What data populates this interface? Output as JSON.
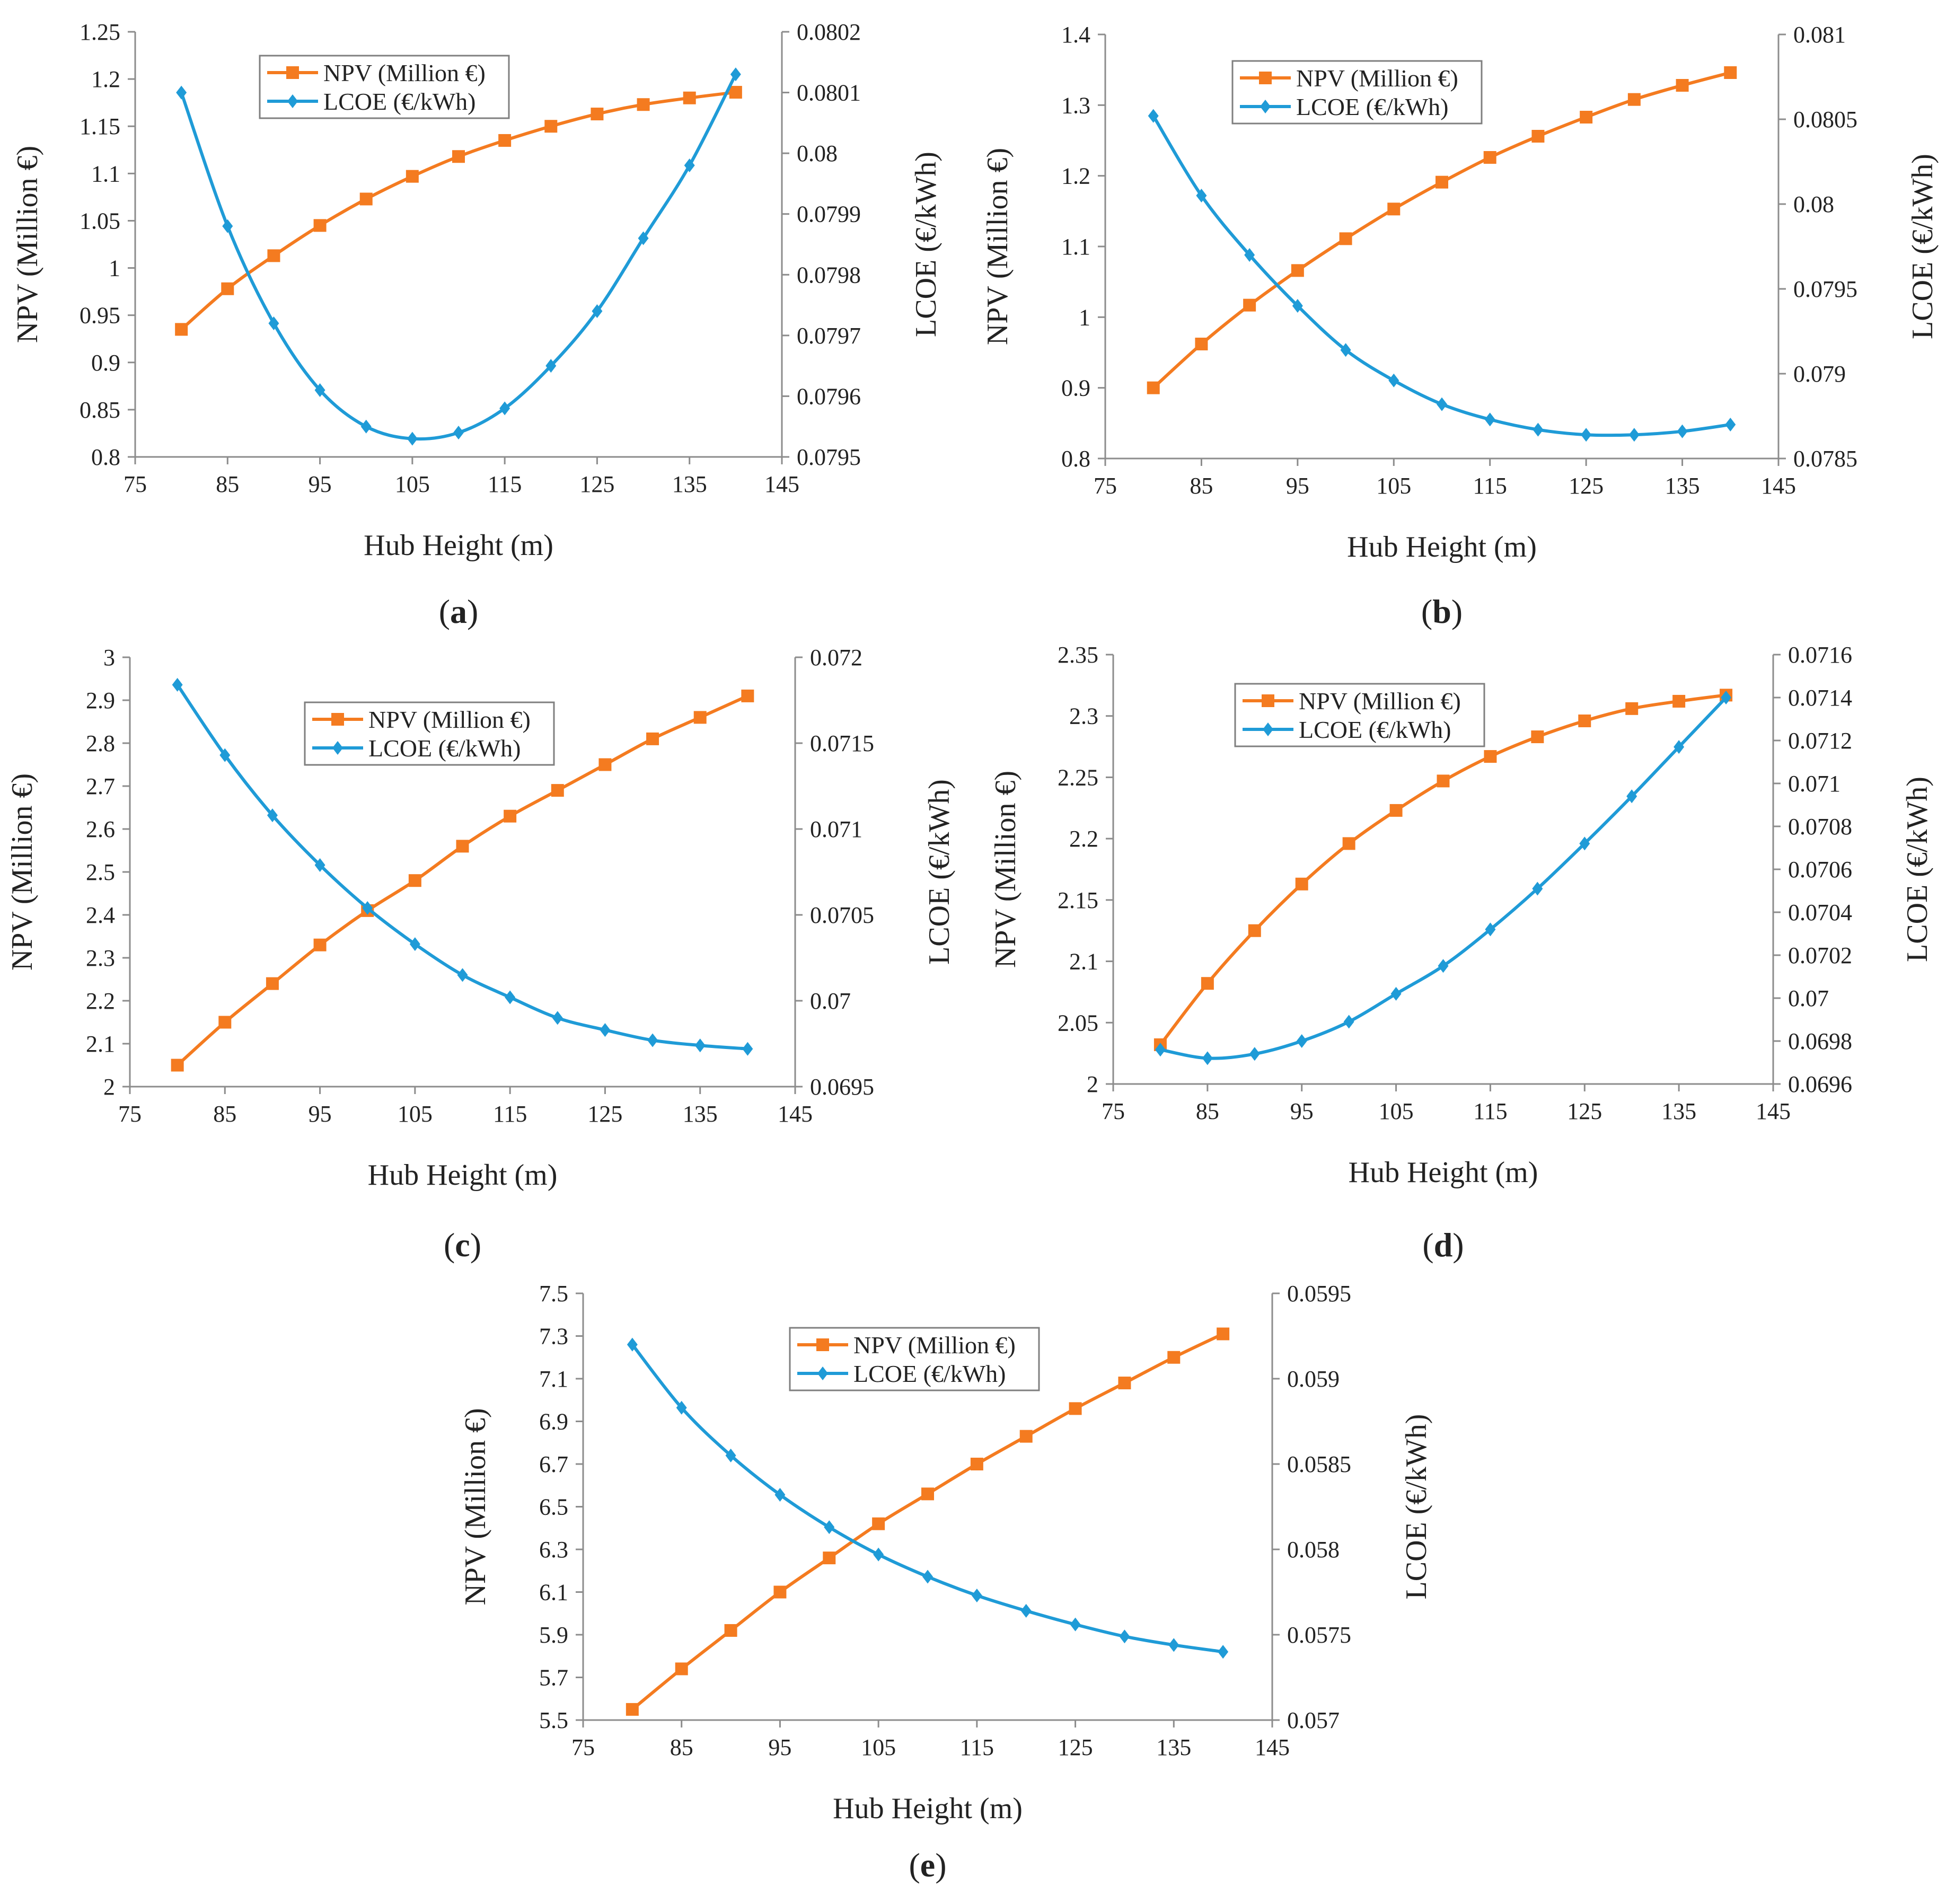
{
  "colors": {
    "npv": "#F47B20",
    "lcoe": "#1F9BD7",
    "axis": "#8c8c8c",
    "legend_border": "#7f7f7f"
  },
  "marker_shapes": {
    "npv": "square",
    "lcoe": "diamond"
  },
  "chart_data": [
    {
      "id": "a",
      "type": "line",
      "caption_letter": "a",
      "xlabel": "Hub Height (m)",
      "ylabel_left": "NPV (Million €)",
      "ylabel_right": "LCOE (€/kWh)",
      "xlim": [
        75,
        145
      ],
      "x_ticks": [
        "75",
        "85",
        "95",
        "105",
        "115",
        "125",
        "135",
        "145"
      ],
      "ylim_left": [
        0.8,
        1.25
      ],
      "y_ticks_left": [
        "0.8",
        "0.85",
        "0.9",
        "0.95",
        "1",
        "1.05",
        "1.1",
        "1.15",
        "1.2",
        "1.25"
      ],
      "ylim_right": [
        0.0795,
        0.0802
      ],
      "y_ticks_right": [
        "0.0795",
        "0.0796",
        "0.0797",
        "0.0798",
        "0.0799",
        "0.08",
        "0.0801",
        "0.0802"
      ],
      "legend_position": "top-center",
      "x": [
        80,
        85,
        90,
        95,
        100,
        105,
        110,
        115,
        120,
        125,
        130,
        135,
        140
      ],
      "series": [
        {
          "name": "NPV (Million €)",
          "axis": "left",
          "marker": "square",
          "values": [
            0.935,
            0.978,
            1.013,
            1.045,
            1.073,
            1.097,
            1.118,
            1.135,
            1.15,
            1.163,
            1.173,
            1.18,
            1.186
          ]
        },
        {
          "name": "LCOE (€/kWh)",
          "axis": "right",
          "marker": "diamond",
          "values": [
            0.0801,
            0.07988,
            0.07972,
            0.07961,
            0.07955,
            0.07953,
            0.07954,
            0.07958,
            0.07965,
            0.07974,
            0.07986,
            0.07998,
            0.08013
          ]
        }
      ]
    },
    {
      "id": "b",
      "type": "line",
      "caption_letter": "b",
      "xlabel": "Hub Height (m)",
      "ylabel_left": "NPV (Million €)",
      "ylabel_right": "LCOE (€/kWh)",
      "xlim": [
        75,
        145
      ],
      "x_ticks": [
        "75",
        "85",
        "95",
        "105",
        "115",
        "125",
        "135",
        "145"
      ],
      "ylim_left": [
        0.8,
        1.4
      ],
      "y_ticks_left": [
        "0.8",
        "0.9",
        "1",
        "1.1",
        "1.2",
        "1.3",
        "1.4"
      ],
      "ylim_right": [
        0.0785,
        0.081
      ],
      "y_ticks_right": [
        "0.0785",
        "0.079",
        "0.0795",
        "0.08",
        "0.0805",
        "0.081"
      ],
      "legend_position": "top-center",
      "x": [
        80,
        85,
        90,
        95,
        100,
        105,
        110,
        115,
        120,
        125,
        130,
        135,
        140
      ],
      "series": [
        {
          "name": "NPV (Million €)",
          "axis": "left",
          "marker": "square",
          "values": [
            0.9,
            0.962,
            1.017,
            1.066,
            1.111,
            1.153,
            1.191,
            1.226,
            1.256,
            1.283,
            1.308,
            1.328,
            1.346
          ]
        },
        {
          "name": "LCOE (€/kWh)",
          "axis": "right",
          "marker": "diamond",
          "values": [
            0.08052,
            0.08005,
            0.0797,
            0.0794,
            0.07914,
            0.07896,
            0.07882,
            0.07873,
            0.07867,
            0.07864,
            0.07864,
            0.07866,
            0.0787
          ]
        }
      ]
    },
    {
      "id": "c",
      "type": "line",
      "caption_letter": "c",
      "xlabel": "Hub Height (m)",
      "ylabel_left": "NPV (Million €)",
      "ylabel_right": "LCOE (€/kWh)",
      "xlim": [
        75,
        145
      ],
      "x_ticks": [
        "75",
        "85",
        "95",
        "105",
        "115",
        "125",
        "135",
        "145"
      ],
      "ylim_left": [
        2.0,
        3.0
      ],
      "y_ticks_left": [
        "2",
        "2.1",
        "2.2",
        "2.3",
        "2.4",
        "2.5",
        "2.6",
        "2.7",
        "2.8",
        "2.9",
        "3"
      ],
      "ylim_right": [
        0.0695,
        0.072
      ],
      "y_ticks_right": [
        "0.0695",
        "0.07",
        "0.0705",
        "0.071",
        "0.0715",
        "0.072"
      ],
      "legend_position": "top-center",
      "x": [
        80,
        85,
        90,
        95,
        100,
        105,
        110,
        115,
        120,
        125,
        130,
        135,
        140
      ],
      "series": [
        {
          "name": "NPV (Million €)",
          "axis": "left",
          "marker": "square",
          "values": [
            2.05,
            2.15,
            2.24,
            2.33,
            2.41,
            2.48,
            2.56,
            2.63,
            2.69,
            2.75,
            2.81,
            2.86,
            2.91
          ]
        },
        {
          "name": "LCOE (€/kWh)",
          "axis": "right",
          "marker": "diamond",
          "values": [
            0.07184,
            0.07143,
            0.07108,
            0.07079,
            0.07054,
            0.07033,
            0.07015,
            0.07002,
            0.0699,
            0.06983,
            0.06977,
            0.06974,
            0.06972
          ]
        }
      ]
    },
    {
      "id": "d",
      "type": "line",
      "caption_letter": "d",
      "xlabel": "Hub Height (m)",
      "ylabel_left": "NPV (Million €)",
      "ylabel_right": "LCOE (€/kWh)",
      "xlim": [
        75,
        145
      ],
      "x_ticks": [
        "75",
        "85",
        "95",
        "105",
        "115",
        "125",
        "135",
        "145"
      ],
      "ylim_left": [
        2.0,
        2.35
      ],
      "y_ticks_left": [
        "2",
        "2.05",
        "2.1",
        "2.15",
        "2.2",
        "2.25",
        "2.3",
        "2.35"
      ],
      "ylim_right": [
        0.0696,
        0.0716
      ],
      "y_ticks_right": [
        "0.0696",
        "0.0698",
        "0.07",
        "0.0702",
        "0.0704",
        "0.0706",
        "0.0708",
        "0.071",
        "0.0712",
        "0.0714",
        "0.0716"
      ],
      "legend_position": "top-center",
      "x": [
        80,
        85,
        90,
        95,
        100,
        105,
        110,
        115,
        120,
        125,
        130,
        135,
        140
      ],
      "series": [
        {
          "name": "NPV (Million €)",
          "axis": "left",
          "marker": "square",
          "values": [
            2.032,
            2.082,
            2.125,
            2.163,
            2.196,
            2.223,
            2.247,
            2.267,
            2.283,
            2.296,
            2.306,
            2.312,
            2.317
          ]
        },
        {
          "name": "LCOE (€/kWh)",
          "axis": "right",
          "marker": "diamond",
          "values": [
            0.06976,
            0.06972,
            0.06974,
            0.0698,
            0.06989,
            0.07002,
            0.07015,
            0.07032,
            0.07051,
            0.07072,
            0.07094,
            0.07117,
            0.0714
          ]
        }
      ]
    },
    {
      "id": "e",
      "type": "line",
      "caption_letter": "e",
      "xlabel": "Hub Height (m)",
      "ylabel_left": "NPV (Million €)",
      "ylabel_right": "LCOE (€/kWh)",
      "xlim": [
        75,
        145
      ],
      "x_ticks": [
        "75",
        "85",
        "95",
        "105",
        "115",
        "125",
        "135",
        "145"
      ],
      "ylim_left": [
        5.5,
        7.5
      ],
      "y_ticks_left": [
        "5.5",
        "5.7",
        "5.9",
        "6.1",
        "6.3",
        "6.5",
        "6.7",
        "6.9",
        "7.1",
        "7.3",
        "7.5"
      ],
      "ylim_right": [
        0.057,
        0.0595
      ],
      "y_ticks_right": [
        "0.057",
        "0.0575",
        "0.058",
        "0.0585",
        "0.059",
        "0.0595"
      ],
      "legend_position": "top-center",
      "x": [
        80,
        85,
        90,
        95,
        100,
        105,
        110,
        115,
        120,
        125,
        130,
        135,
        140
      ],
      "series": [
        {
          "name": "NPV (Million €)",
          "axis": "left",
          "marker": "square",
          "values": [
            5.55,
            5.74,
            5.92,
            6.1,
            6.26,
            6.42,
            6.56,
            6.7,
            6.83,
            6.96,
            7.08,
            7.2,
            7.31
          ]
        },
        {
          "name": "LCOE (€/kWh)",
          "axis": "right",
          "marker": "diamond",
          "values": [
            0.0592,
            0.05883,
            0.05855,
            0.05832,
            0.05813,
            0.05797,
            0.05784,
            0.05773,
            0.05764,
            0.05756,
            0.05749,
            0.05744,
            0.0574
          ]
        }
      ]
    }
  ]
}
